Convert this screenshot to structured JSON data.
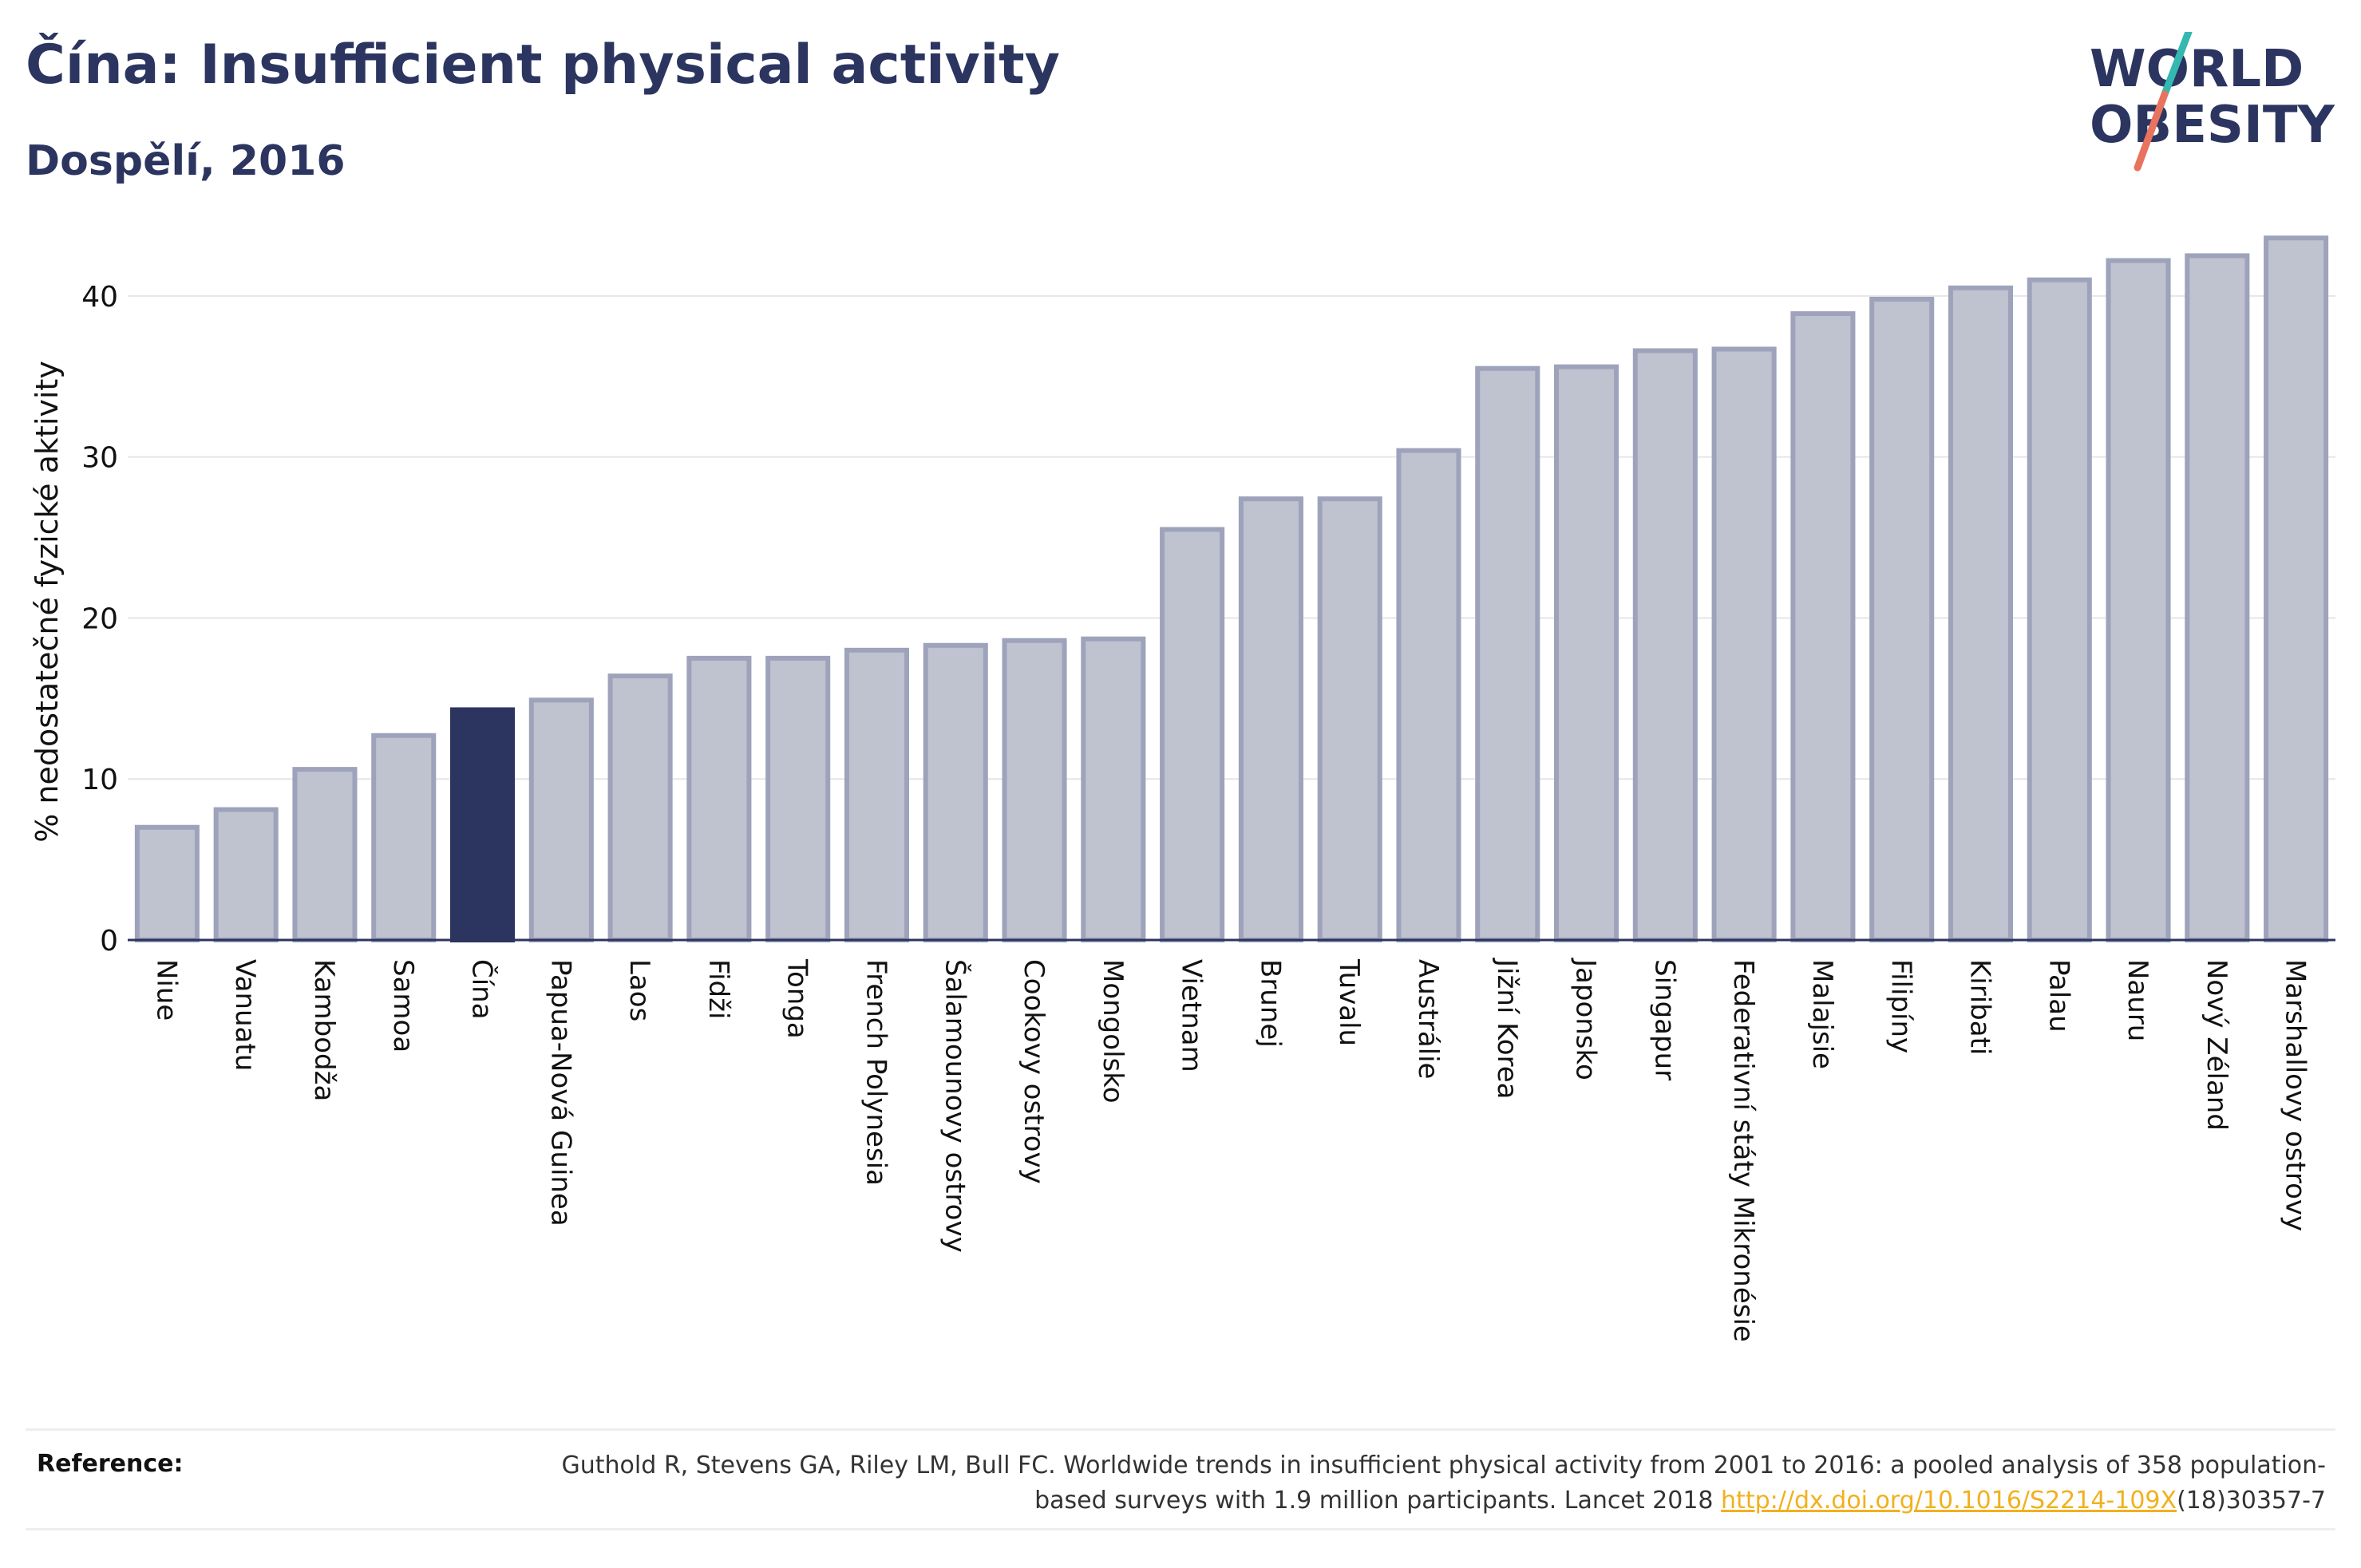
{
  "title": "Čína: Insufficient physical activity",
  "subtitle": "Dospělí, 2016",
  "logo": {
    "line1": "WORLD",
    "line2": "OBESITY",
    "accent_colors": [
      "#34b8b0",
      "#e8735f"
    ]
  },
  "reference": {
    "label": "Reference:",
    "text_before_link": "Guthold R, Stevens GA, Riley LM, Bull FC. Worldwide trends in insufficient physical activity from 2001 to 2016: a pooled analysis of 358 population-based surveys with 1.9 million participants. Lancet 2018 ",
    "link_text": "http://dx.doi.org/10.1016/S2214-109X",
    "text_after_link": "(18)30357-7"
  },
  "colors": {
    "bar": "#bfc2cf",
    "bar_border": "#9ea3bb",
    "highlight": "#2b3560",
    "text": "#2b3560",
    "link": "#f2b01e"
  },
  "chart_data": {
    "type": "bar",
    "ylabel": "% nedostatečné fyzické aktivity",
    "ylim": [
      0,
      45
    ],
    "yticks": [
      0,
      10,
      20,
      30,
      40
    ],
    "grid": true,
    "highlight": "Čína",
    "categories": [
      "Niue",
      "Vanuatu",
      "Kambodža",
      "Samoa",
      "Čína",
      "Papua-Nová Guinea",
      "Laos",
      "Fidži",
      "Tonga",
      "French Polynesia",
      "Šalamounovy ostrovy",
      "Cookovy ostrovy",
      "Mongolsko",
      "Vietnam",
      "Brunej",
      "Tuvalu",
      "Austrálie",
      "Jižní Korea",
      "Japonsko",
      "Singapur",
      "Federativní státy Mikronésie",
      "Malajsie",
      "Filipíny",
      "Kiribati",
      "Palau",
      "Nauru",
      "Nový Zéland",
      "Marshallovy ostrovy"
    ],
    "values": [
      7.0,
      8.1,
      10.6,
      12.7,
      14.3,
      14.9,
      16.4,
      17.5,
      17.5,
      18.0,
      18.3,
      18.6,
      18.7,
      25.5,
      27.4,
      27.4,
      30.4,
      35.5,
      35.6,
      36.6,
      36.7,
      38.9,
      39.8,
      40.5,
      41.0,
      42.2,
      42.5,
      43.6
    ]
  }
}
